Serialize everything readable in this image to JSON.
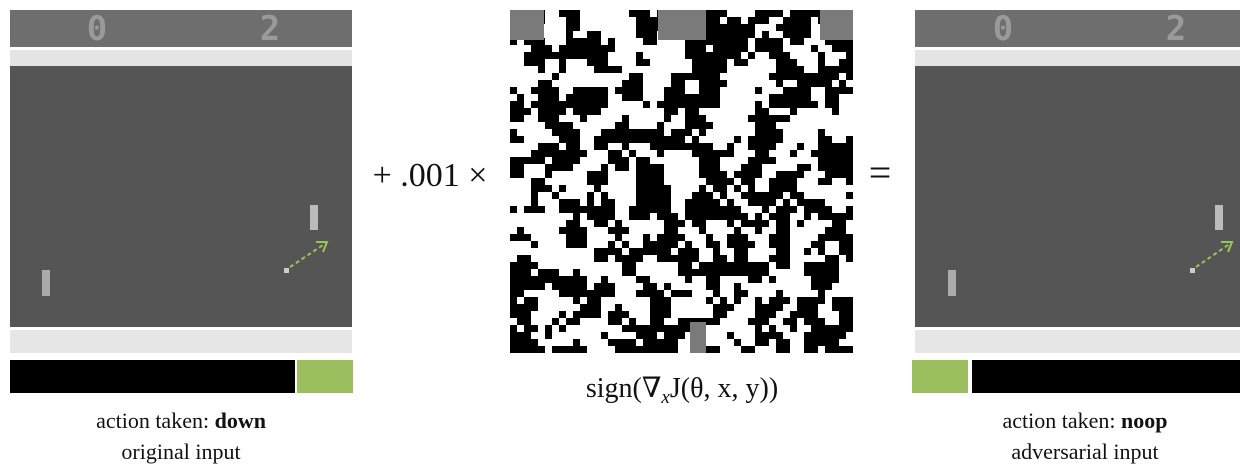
{
  "panels": [
    {
      "scores": [
        "0",
        "2"
      ],
      "action_label": "action taken:",
      "action": "down",
      "caption": "original input"
    },
    {
      "scores": [
        "0",
        "2"
      ],
      "action_label": "action taken:",
      "action": "noop",
      "caption": "adversarial input"
    }
  ],
  "operator": "+ .001 ×",
  "formula": {
    "before": "sign(∇",
    "subscript": "x",
    "after": "J(θ, x, y))"
  },
  "equals": "="
}
